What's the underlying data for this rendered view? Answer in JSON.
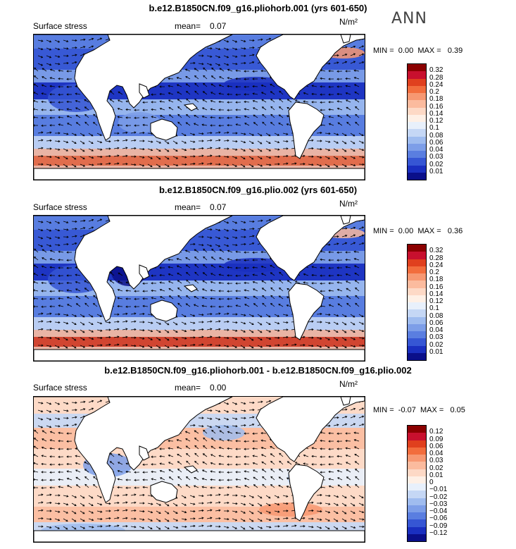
{
  "season": "ANN",
  "panels": [
    {
      "title": "b.e12.B1850CN.f09_g16.pliohorb.001 (yrs 601-650)",
      "variable": "Surface stress",
      "mean_label": "mean=",
      "mean_value": "0.07",
      "units": "N/m²",
      "min_label": "MIN =",
      "min_value": "0.00",
      "max_label": "MAX =",
      "max_value": "0.39",
      "colorbar": {
        "labels": [
          "0.32",
          "0.28",
          "0.24",
          "0.2",
          "0.18",
          "0.16",
          "0.14",
          "0.12",
          "0.1",
          "0.08",
          "0.06",
          "0.04",
          "0.03",
          "0.02",
          "0.01"
        ],
        "colors": [
          "#8b0000",
          "#c8102e",
          "#e0401e",
          "#f26d3d",
          "#f79872",
          "#fbbb9e",
          "#fdd9c6",
          "#fef0e6",
          "#e8f0fb",
          "#c5d7f5",
          "#9fbcef",
          "#7d9ee8",
          "#5a7ee0",
          "#3656d4",
          "#1a2fc0",
          "#0a0f8a"
        ]
      }
    },
    {
      "title": "b.e12.B1850CN.f09_g16.plio.002 (yrs 601-650)",
      "variable": "Surface stress",
      "mean_label": "mean=",
      "mean_value": "0.07",
      "units": "N/m²",
      "min_label": "MIN =",
      "min_value": "0.00",
      "max_label": "MAX =",
      "max_value": "0.36",
      "colorbar": {
        "labels": [
          "0.32",
          "0.28",
          "0.24",
          "0.2",
          "0.18",
          "0.16",
          "0.14",
          "0.12",
          "0.1",
          "0.08",
          "0.06",
          "0.04",
          "0.03",
          "0.02",
          "0.01"
        ],
        "colors": [
          "#8b0000",
          "#c8102e",
          "#e0401e",
          "#f26d3d",
          "#f79872",
          "#fbbb9e",
          "#fdd9c6",
          "#fef0e6",
          "#e8f0fb",
          "#c5d7f5",
          "#9fbcef",
          "#7d9ee8",
          "#5a7ee0",
          "#3656d4",
          "#1a2fc0",
          "#0a0f8a"
        ]
      }
    },
    {
      "title": "b.e12.B1850CN.f09_g16.pliohorb.001 - b.e12.B1850CN.f09_g16.plio.002",
      "variable": "Surface stress",
      "mean_label": "mean=",
      "mean_value": "0.00",
      "units": "N/m²",
      "min_label": "MIN =",
      "min_value": "-0.07",
      "max_label": "MAX =",
      "max_value": "0.05",
      "colorbar": {
        "labels": [
          "0.12",
          "0.09",
          "0.06",
          "0.04",
          "0.03",
          "0.02",
          "0.01",
          "0",
          "−0.01",
          "−0.02",
          "−0.03",
          "−0.04",
          "−0.06",
          "−0.09",
          "−0.12"
        ],
        "colors": [
          "#8b0000",
          "#c8102e",
          "#e0401e",
          "#f26d3d",
          "#f79872",
          "#fbbb9e",
          "#fdd9c6",
          "#fef0e6",
          "#e8f0fb",
          "#c5d7f5",
          "#9fbcef",
          "#7d9ee8",
          "#5a7ee0",
          "#3656d4",
          "#1a2fc0",
          "#0a0f8a"
        ]
      }
    }
  ]
}
